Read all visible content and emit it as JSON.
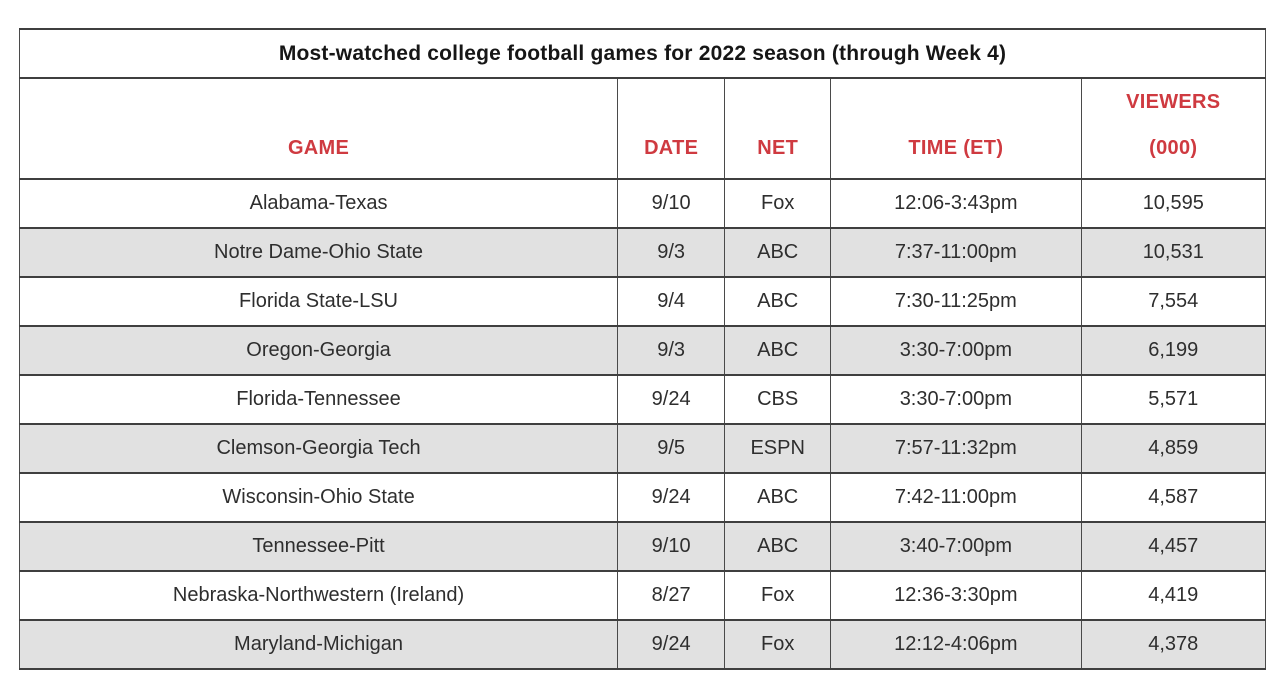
{
  "chart_data": {
    "type": "table",
    "title": "Most-watched college football games for 2022 season (through Week 4)",
    "columns": [
      "GAME",
      "DATE",
      "NET",
      "TIME (ET)",
      "VIEWERS\n(000)"
    ],
    "rows": [
      {
        "game": "Alabama-Texas",
        "date": "9/10",
        "net": "Fox",
        "time": "12:06-3:43pm",
        "viewers": "10,595"
      },
      {
        "game": "Notre Dame-Ohio State",
        "date": "9/3",
        "net": "ABC",
        "time": "7:37-11:00pm",
        "viewers": "10,531"
      },
      {
        "game": "Florida State-LSU",
        "date": "9/4",
        "net": "ABC",
        "time": "7:30-11:25pm",
        "viewers": "7,554"
      },
      {
        "game": "Oregon-Georgia",
        "date": "9/3",
        "net": "ABC",
        "time": "3:30-7:00pm",
        "viewers": "6,199"
      },
      {
        "game": "Florida-Tennessee",
        "date": "9/24",
        "net": "CBS",
        "time": "3:30-7:00pm",
        "viewers": "5,571"
      },
      {
        "game": "Clemson-Georgia Tech",
        "date": "9/5",
        "net": "ESPN",
        "time": "7:57-11:32pm",
        "viewers": "4,859"
      },
      {
        "game": "Wisconsin-Ohio State",
        "date": "9/24",
        "net": "ABC",
        "time": "7:42-11:00pm",
        "viewers": "4,587"
      },
      {
        "game": "Tennessee-Pitt",
        "date": "9/10",
        "net": "ABC",
        "time": "3:40-7:00pm",
        "viewers": "4,457"
      },
      {
        "game": "Nebraska-Northwestern (Ireland)",
        "date": "8/27",
        "net": "Fox",
        "time": "12:36-3:30pm",
        "viewers": "4,419"
      },
      {
        "game": "Maryland-Michigan",
        "date": "9/24",
        "net": "Fox",
        "time": "12:12-4:06pm",
        "viewers": "4,378"
      }
    ],
    "viewers_values": [
      10595,
      10531,
      7554,
      6199,
      5571,
      4859,
      4587,
      4457,
      4419,
      4378
    ],
    "layout": {
      "row_striping": true,
      "all_cells_centered": true,
      "header_alignment": "bottom"
    }
  },
  "colors": {
    "header_text": "#cf3a40",
    "title_text": "#161616",
    "cell_text": "#2e2e2e",
    "alt_row_background": "#e1e1e1",
    "border": "#3f3f3f"
  }
}
